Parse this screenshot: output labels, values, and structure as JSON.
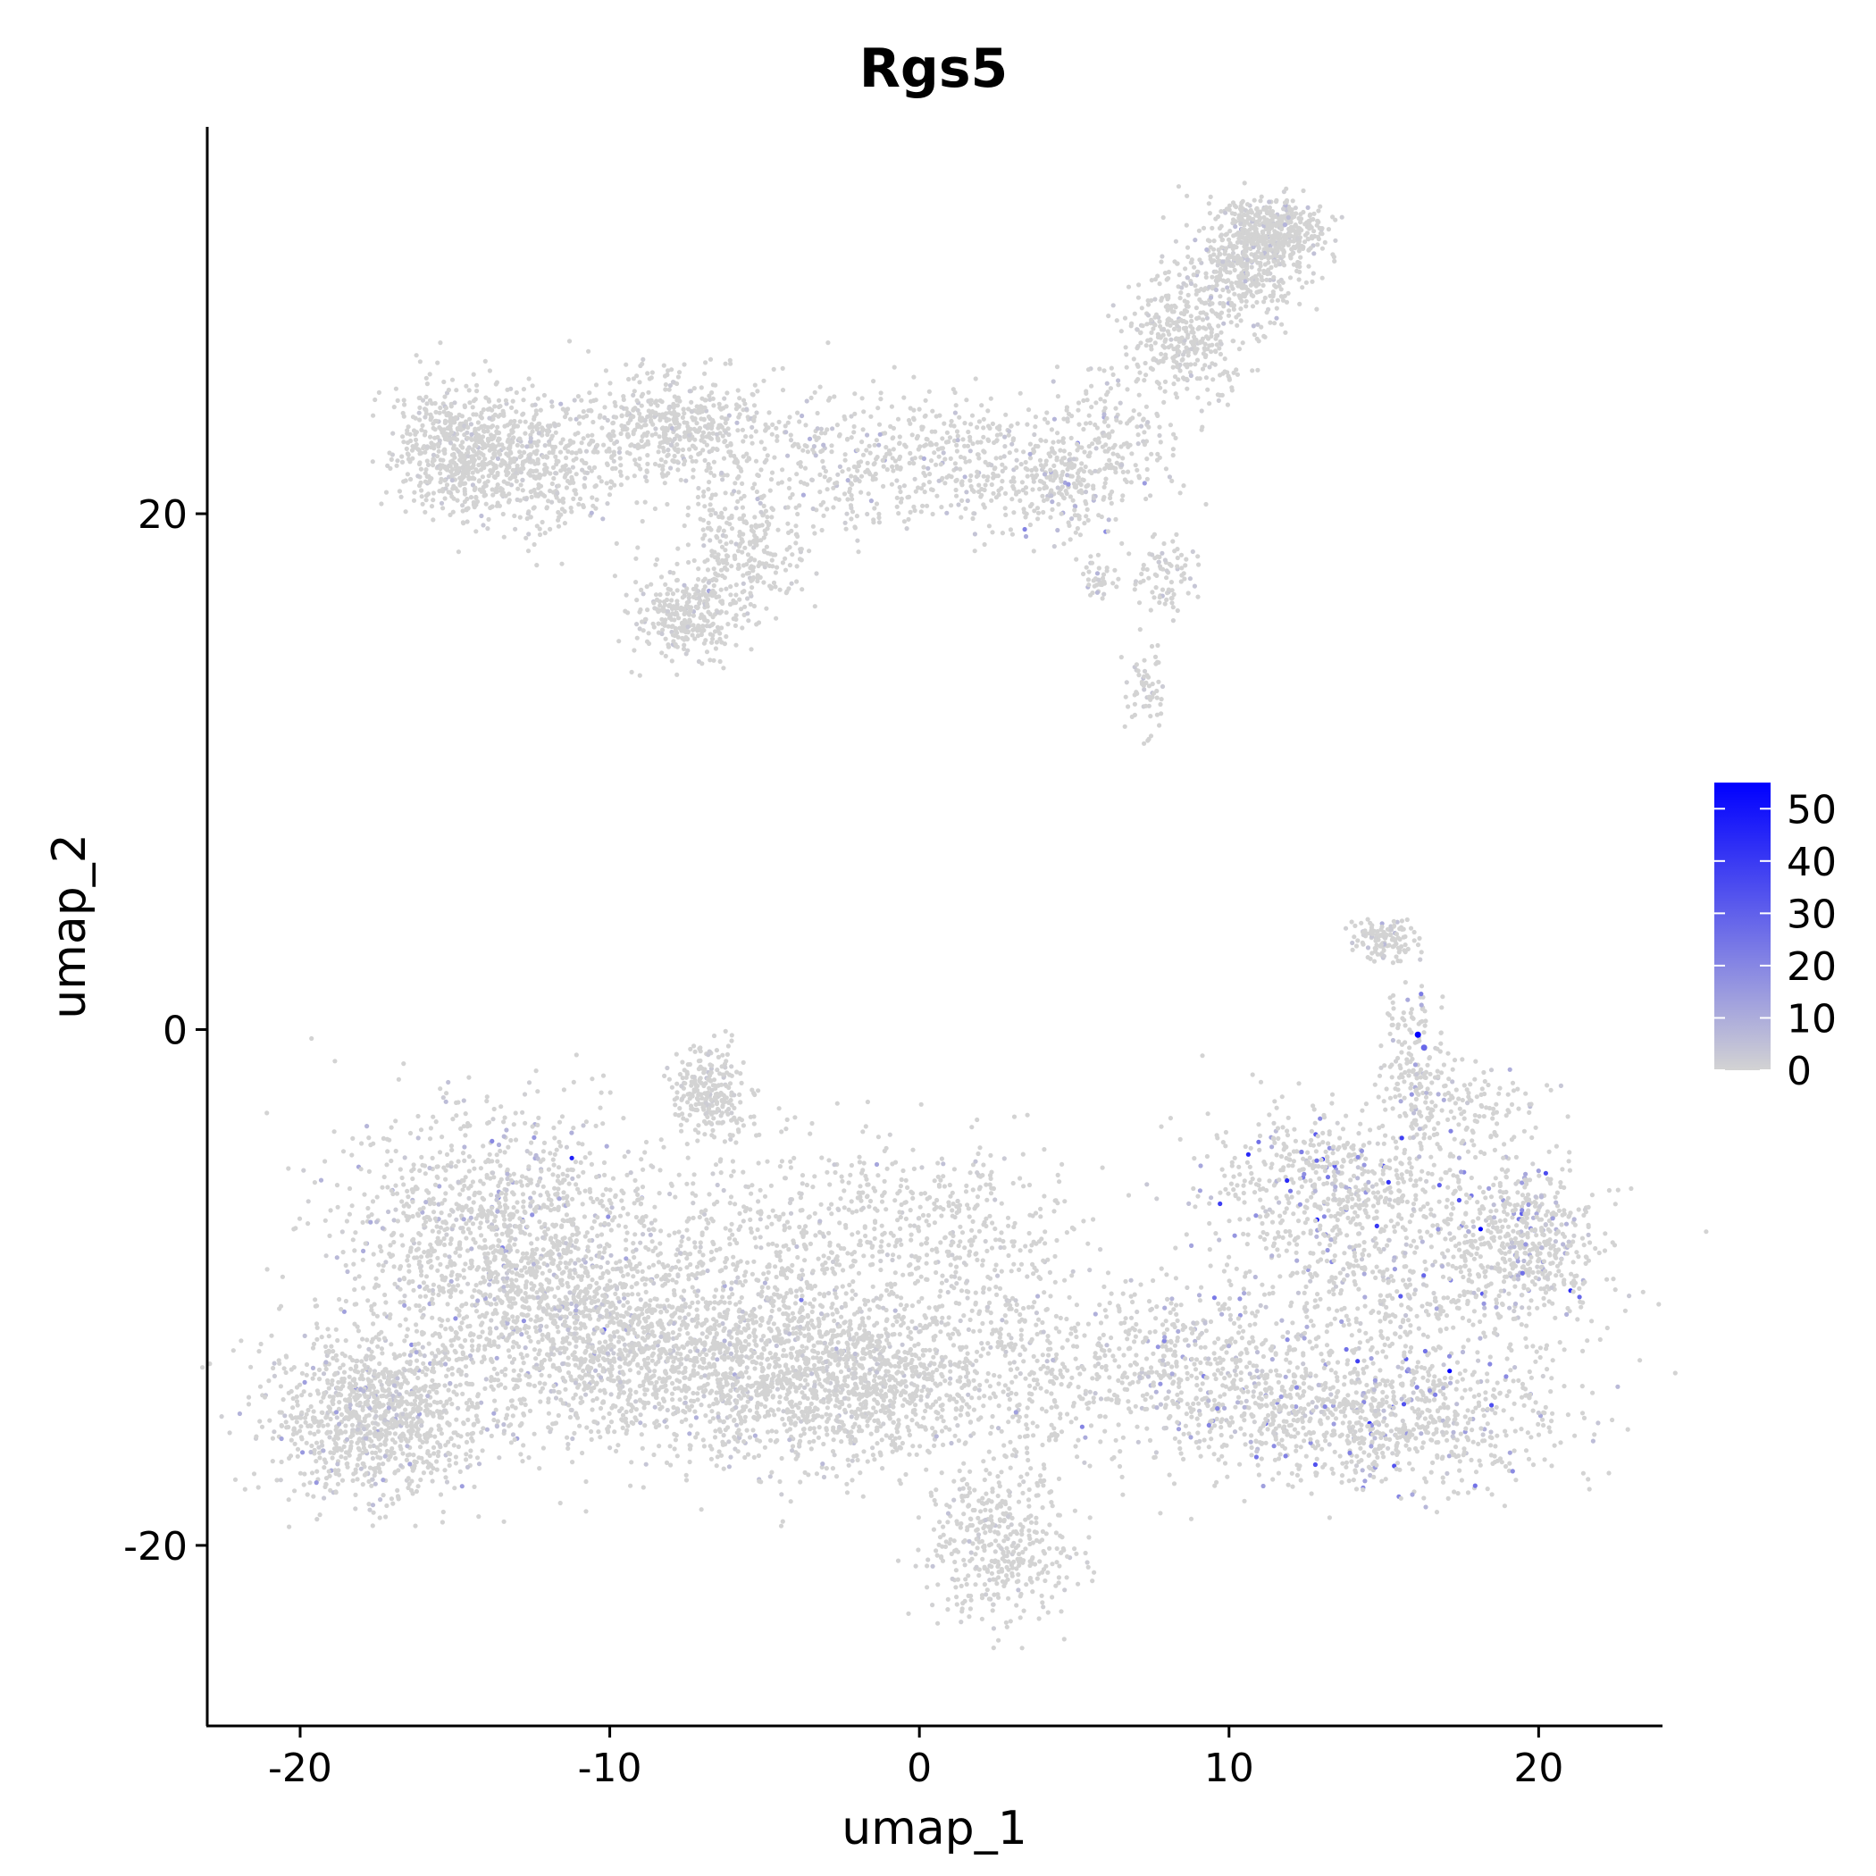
{
  "chart_data": {
    "type": "scatter",
    "title": "Rgs5",
    "xlabel": "umap_1",
    "ylabel": "umap_2",
    "xlim": [
      -23,
      24
    ],
    "ylim": [
      -27,
      35
    ],
    "x_ticks": [
      -20,
      -10,
      0,
      10,
      20
    ],
    "x_tick_labels": [
      "-20",
      "-10",
      "0",
      "10",
      "20"
    ],
    "y_ticks": [
      -20,
      0,
      20
    ],
    "y_tick_labels": [
      "-20",
      "0",
      "20"
    ],
    "grid": false,
    "color_scale": {
      "min_label": "0",
      "max": 55,
      "low_color": "#d3d3d3",
      "high_color": "#0000ff",
      "ticks": [
        0,
        10,
        20,
        30,
        40,
        50
      ],
      "tick_labels": [
        "0",
        "10",
        "20",
        "30",
        "40",
        "50"
      ],
      "legend_position": "right"
    },
    "clusters": [
      {
        "cx": -17.5,
        "cy": -15,
        "sx": 1.8,
        "sy": 1.6,
        "n": 1100,
        "expr": 1.5
      },
      {
        "cx": -13.5,
        "cy": -8,
        "sx": 2.6,
        "sy": 2.4,
        "n": 1300,
        "expr": 2
      },
      {
        "cx": -11,
        "cy": -12,
        "sx": 2.5,
        "sy": 1.8,
        "n": 900,
        "expr": 1
      },
      {
        "cx": -6,
        "cy": -13,
        "sx": 2.5,
        "sy": 2,
        "n": 1100,
        "expr": 1
      },
      {
        "cx": -2,
        "cy": -13.5,
        "sx": 2,
        "sy": 1.5,
        "n": 900,
        "expr": 0.5
      },
      {
        "cx": -6.8,
        "cy": -2.3,
        "sx": 0.6,
        "sy": 0.9,
        "n": 250,
        "expr": 0.5
      },
      {
        "cx": -4,
        "cy": -8,
        "sx": 3,
        "sy": 2.2,
        "n": 450,
        "expr": 0.5
      },
      {
        "cx": 1,
        "cy": -7.5,
        "sx": 2,
        "sy": 1.5,
        "n": 250,
        "expr": 0.5
      },
      {
        "cx": 3,
        "cy": -13,
        "sx": 1.5,
        "sy": 2.5,
        "n": 350,
        "expr": 0.5
      },
      {
        "cx": 2.5,
        "cy": -20,
        "sx": 1.2,
        "sy": 1.5,
        "n": 400,
        "expr": 0.5
      },
      {
        "cx": 8,
        "cy": -13,
        "sx": 2.5,
        "sy": 1.5,
        "n": 500,
        "expr": 2
      },
      {
        "cx": 14.5,
        "cy": -15,
        "sx": 3,
        "sy": 1.4,
        "n": 1000,
        "expr": 4
      },
      {
        "cx": 13.5,
        "cy": -6,
        "sx": 2.2,
        "sy": 1.4,
        "n": 600,
        "expr": 5
      },
      {
        "cx": 19.5,
        "cy": -8,
        "sx": 1.2,
        "sy": 1.4,
        "n": 450,
        "expr": 3
      },
      {
        "cx": 15.5,
        "cy": -10,
        "sx": 3,
        "sy": 1.8,
        "n": 500,
        "expr": 3
      },
      {
        "cx": 15,
        "cy": 3.5,
        "sx": 0.5,
        "sy": 0.4,
        "n": 120,
        "expr": 1
      },
      {
        "cx": 16,
        "cy": -1,
        "sx": 0.5,
        "sy": 1.5,
        "n": 130,
        "expr": 3
      },
      {
        "cx": 17.5,
        "cy": -3,
        "sx": 1.2,
        "sy": 1,
        "n": 150,
        "expr": 2
      },
      {
        "cx": -15,
        "cy": 22.5,
        "sx": 1,
        "sy": 1.2,
        "n": 500,
        "expr": 0.5
      },
      {
        "cx": -12.5,
        "cy": 22,
        "sx": 1.5,
        "sy": 1.3,
        "n": 500,
        "expr": 0.5
      },
      {
        "cx": -8,
        "cy": 23.5,
        "sx": 1.4,
        "sy": 1,
        "n": 450,
        "expr": 0.5
      },
      {
        "cx": -7.5,
        "cy": 16,
        "sx": 0.8,
        "sy": 0.8,
        "n": 300,
        "expr": 0.5
      },
      {
        "cx": -5.5,
        "cy": 18.5,
        "sx": 0.9,
        "sy": 1.2,
        "n": 250,
        "expr": 0.5
      },
      {
        "cx": -3,
        "cy": 22,
        "sx": 2.5,
        "sy": 1.3,
        "n": 350,
        "expr": 1
      },
      {
        "cx": 2,
        "cy": 22,
        "sx": 2.5,
        "sy": 1.3,
        "n": 350,
        "expr": 1
      },
      {
        "cx": 4.5,
        "cy": 21,
        "sx": 1,
        "sy": 1,
        "n": 150,
        "expr": 2
      },
      {
        "cx": 6,
        "cy": 23,
        "sx": 1,
        "sy": 1.2,
        "n": 150,
        "expr": 1
      },
      {
        "cx": 8.5,
        "cy": 27,
        "sx": 1,
        "sy": 1.2,
        "n": 350,
        "expr": 0.5
      },
      {
        "cx": 10.5,
        "cy": 29.5,
        "sx": 0.9,
        "sy": 1,
        "n": 400,
        "expr": 1
      },
      {
        "cx": 11.5,
        "cy": 31,
        "sx": 0.8,
        "sy": 0.6,
        "n": 400,
        "expr": 1
      },
      {
        "cx": 8,
        "cy": 17.5,
        "sx": 0.5,
        "sy": 0.7,
        "n": 80,
        "expr": 0.5
      },
      {
        "cx": 7.3,
        "cy": 13,
        "sx": 0.3,
        "sy": 0.9,
        "n": 60,
        "expr": 0.5
      },
      {
        "cx": 5.8,
        "cy": 17.5,
        "sx": 0.3,
        "sy": 0.4,
        "n": 40,
        "expr": 2
      }
    ],
    "highlight_points": [
      {
        "x": 16.1,
        "y": -0.2,
        "value": 55
      },
      {
        "x": 16.3,
        "y": -0.7,
        "value": 28
      }
    ]
  }
}
